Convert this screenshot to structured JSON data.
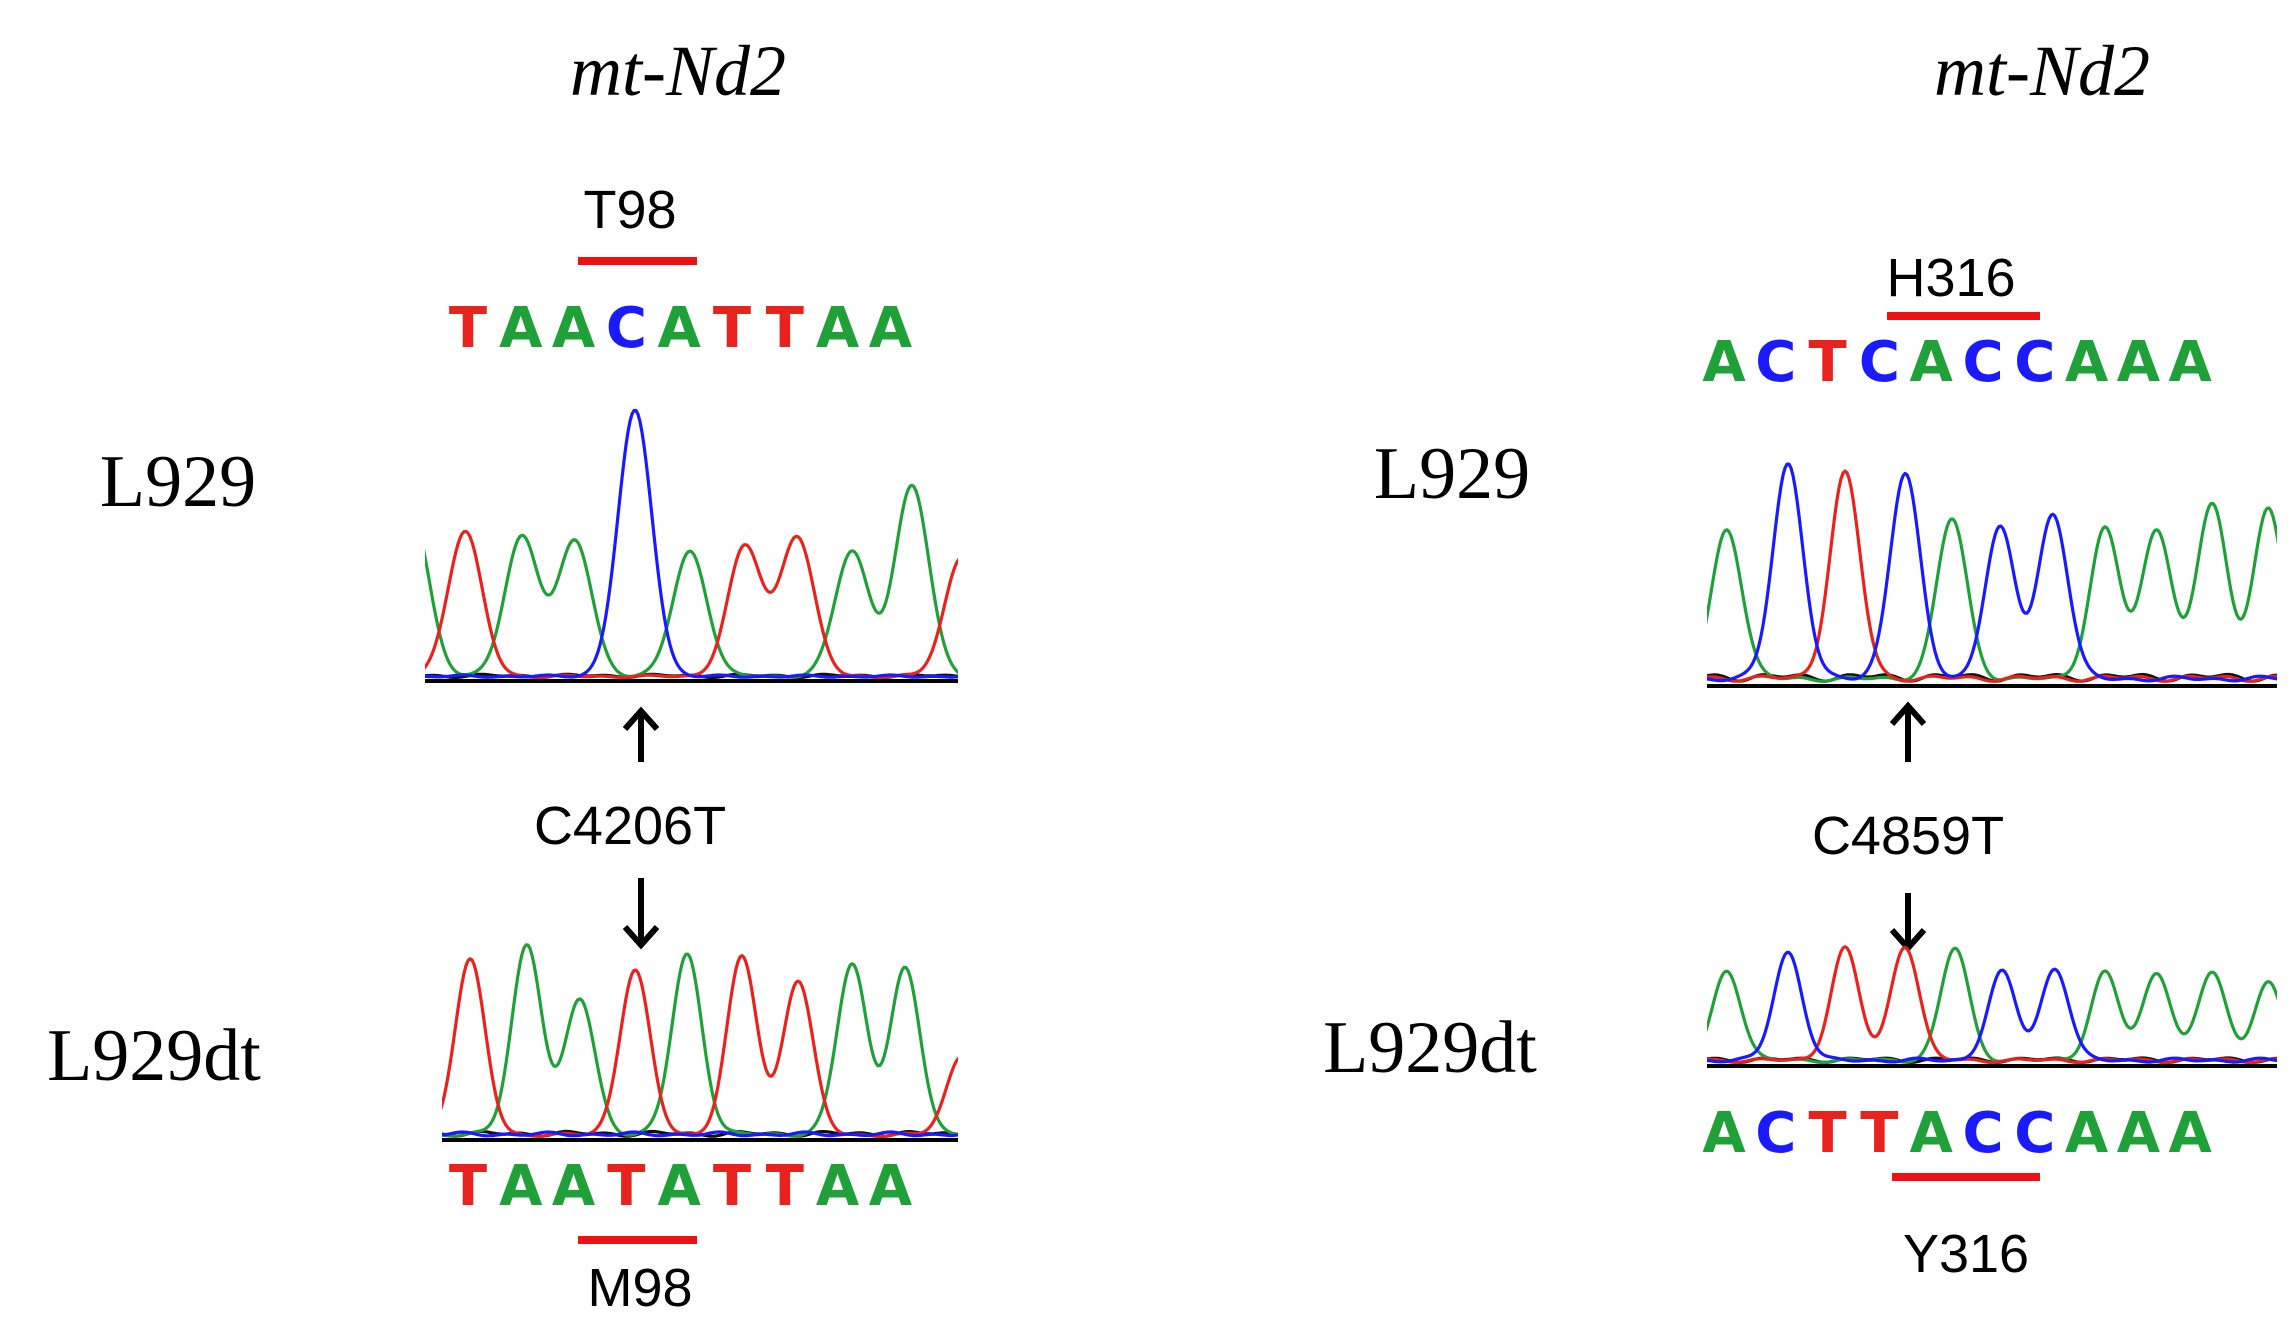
{
  "colors": {
    "A": "#1fa038",
    "C": "#1a1aff",
    "G": "#111111",
    "T": "#e8221c",
    "underline": "#ee1111",
    "baseline": "#000000"
  },
  "panels": [
    {
      "gene": "mt-Nd2",
      "mutation": "C4206T",
      "wt": {
        "sample": "L929",
        "sequence": [
          "T",
          "A",
          "A",
          "C",
          "A",
          "T",
          "T",
          "A",
          "A"
        ],
        "codon": "T98",
        "codon_range": [
          2,
          4
        ]
      },
      "mut": {
        "sample": "L929dt",
        "sequence": [
          "T",
          "A",
          "A",
          "T",
          "A",
          "T",
          "T",
          "A",
          "A"
        ],
        "codon": "M98",
        "codon_range": [
          2,
          4
        ]
      }
    },
    {
      "gene": "mt-Nd2",
      "mutation": "C4859T",
      "wt": {
        "sample": "L929",
        "sequence": [
          "A",
          "C",
          "T",
          "C",
          "A",
          "C",
          "C",
          "A",
          "A",
          "A"
        ],
        "codon": "H316",
        "codon_range": [
          3,
          5
        ]
      },
      "mut": {
        "sample": "L929dt",
        "sequence": [
          "A",
          "C",
          "T",
          "T",
          "A",
          "C",
          "C",
          "A",
          "A",
          "A"
        ],
        "codon": "Y316",
        "codon_range": [
          3,
          5
        ]
      }
    }
  ]
}
